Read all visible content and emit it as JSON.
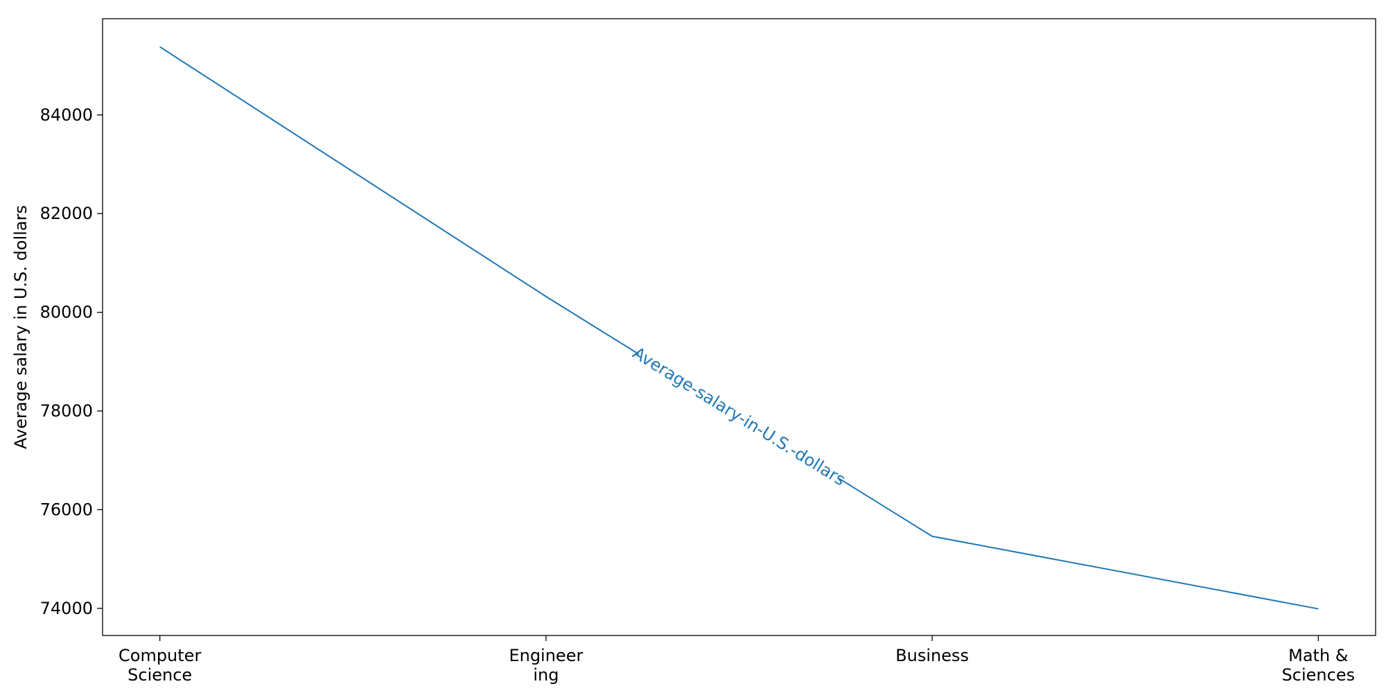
{
  "chart_data": {
    "type": "line",
    "categories": [
      [
        "Computer",
        "Science"
      ],
      [
        "Engineer",
        "ing"
      ],
      [
        "Business"
      ],
      [
        "Math &",
        "Sciences"
      ]
    ],
    "series": [
      {
        "name": "Average-salary-in-U.S.-dollars",
        "values": [
          85380,
          80320,
          75460,
          73990
        ],
        "color": "#1f77b4"
      }
    ],
    "xlabel": "",
    "ylabel": "Average salary in U.S. dollars",
    "ylim": [
      73450,
      85950
    ],
    "yticks": [
      74000,
      76000,
      78000,
      80000,
      82000,
      84000
    ],
    "grid": false,
    "inline_label": {
      "text": "Average-salary-in-U.S.-dollars",
      "segment_index": 1,
      "position_fraction": 0.5
    }
  }
}
